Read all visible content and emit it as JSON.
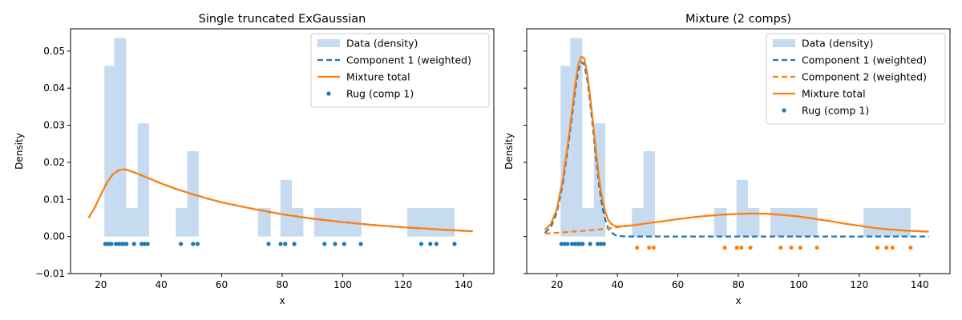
{
  "chart_data": [
    {
      "type": "bar",
      "title": "Single truncated ExGaussian",
      "xlabel": "x",
      "ylabel": "Density",
      "xlim": [
        10,
        150
      ],
      "ylim": [
        -0.01,
        0.056
      ],
      "xticks": [
        20,
        40,
        60,
        80,
        100,
        120,
        140
      ],
      "yticks": [
        -0.01,
        0.0,
        0.01,
        0.02,
        0.03,
        0.04,
        0.05
      ],
      "ytick_labels": [
        "−0.01",
        "0.00",
        "0.01",
        "0.02",
        "0.03",
        "0.04",
        "0.05"
      ],
      "legend_position": "top-right",
      "legend": [
        "Data (density)",
        "Component 1 (weighted)",
        "Mixture total",
        "Rug (comp 1)"
      ],
      "histogram": {
        "color": "#c6dbef",
        "bins": [
          [
            21.2,
            24.4,
            0.046
          ],
          [
            24.4,
            28.4,
            0.0535
          ],
          [
            28.4,
            32.2,
            0.0077
          ],
          [
            32.2,
            36.0,
            0.0305
          ],
          [
            44.8,
            48.6,
            0.0077
          ],
          [
            48.6,
            52.4,
            0.023
          ],
          [
            72.0,
            76.2,
            0.0077
          ],
          [
            79.4,
            83.2,
            0.0153
          ],
          [
            83.2,
            87.0,
            0.0077
          ],
          [
            90.6,
            106.2,
            0.0077
          ],
          [
            121.4,
            137.0,
            0.0077
          ]
        ]
      },
      "curves": [
        {
          "name": "Component 1 (weighted)",
          "color": "#1f77b4",
          "style": "dashed",
          "x": [
            16,
            18,
            20,
            22,
            24,
            26,
            28,
            30,
            32,
            35,
            40,
            45,
            50,
            55,
            60,
            70,
            80,
            90,
            100,
            110,
            120,
            130,
            143
          ],
          "y": [
            0.005,
            0.0078,
            0.0112,
            0.0145,
            0.0168,
            0.0179,
            0.0181,
            0.0176,
            0.017,
            0.016,
            0.0143,
            0.0128,
            0.0115,
            0.0103,
            0.0092,
            0.0075,
            0.006,
            0.0048,
            0.0039,
            0.0031,
            0.0025,
            0.002,
            0.0014
          ]
        },
        {
          "name": "Mixture total",
          "color": "#ff7f0e",
          "style": "solid",
          "x": [
            16,
            18,
            20,
            22,
            24,
            26,
            28,
            30,
            32,
            35,
            40,
            45,
            50,
            55,
            60,
            70,
            80,
            90,
            100,
            110,
            120,
            130,
            143
          ],
          "y": [
            0.005,
            0.0078,
            0.0112,
            0.0145,
            0.0168,
            0.0179,
            0.0181,
            0.0176,
            0.017,
            0.016,
            0.0143,
            0.0128,
            0.0115,
            0.0103,
            0.0092,
            0.0075,
            0.006,
            0.0048,
            0.0039,
            0.0031,
            0.0025,
            0.002,
            0.0014
          ]
        }
      ],
      "rugs": [
        {
          "name": "Rug (comp 1)",
          "color": "#1f77b4",
          "y": -0.002,
          "x": [
            21.5,
            22.5,
            23.5,
            25,
            26,
            27,
            27.5,
            28.5,
            31,
            33.5,
            34.5,
            35.5,
            46.5,
            50.5,
            52,
            75.5,
            79.5,
            81,
            84,
            94,
            97.5,
            100.5,
            106,
            126,
            129,
            131,
            137
          ]
        }
      ]
    },
    {
      "type": "bar",
      "title": "Mixture (2 comps)",
      "xlabel": "x",
      "ylabel": "Density",
      "xlim": [
        10,
        150
      ],
      "ylim": [
        -0.01,
        0.056
      ],
      "xticks": [
        20,
        40,
        60,
        80,
        100,
        120,
        140
      ],
      "yticks": [
        -0.01,
        0.0,
        0.01,
        0.02,
        0.03,
        0.04,
        0.05
      ],
      "ytick_labels": [
        "",
        "",
        "",
        "",
        "",
        "",
        ""
      ],
      "legend_position": "top-right",
      "legend": [
        "Data (density)",
        "Component 1 (weighted)",
        "Component 2 (weighted)",
        "Mixture total",
        "Rug (comp 1)"
      ],
      "histogram": {
        "color": "#c6dbef",
        "bins": [
          [
            21.2,
            24.4,
            0.046
          ],
          [
            24.4,
            28.4,
            0.0535
          ],
          [
            28.4,
            32.2,
            0.0077
          ],
          [
            32.2,
            36.0,
            0.0305
          ],
          [
            44.8,
            48.6,
            0.0077
          ],
          [
            48.6,
            52.4,
            0.023
          ],
          [
            72.0,
            76.2,
            0.0077
          ],
          [
            79.4,
            83.2,
            0.0153
          ],
          [
            83.2,
            87.0,
            0.0077
          ],
          [
            90.6,
            106.2,
            0.0077
          ],
          [
            121.4,
            137.0,
            0.0077
          ]
        ]
      },
      "curves": [
        {
          "name": "Component 1 (weighted)",
          "color": "#1f77b4",
          "style": "dashed",
          "x": [
            16,
            18,
            20,
            22,
            24,
            26,
            27,
            28,
            29,
            30,
            31,
            32,
            33,
            34,
            35,
            36,
            37,
            38,
            39,
            40,
            42,
            45,
            50,
            60,
            80,
            100,
            143
          ],
          "y": [
            0.001,
            0.0025,
            0.0065,
            0.0145,
            0.026,
            0.039,
            0.0445,
            0.047,
            0.0465,
            0.0425,
            0.036,
            0.0285,
            0.0205,
            0.0135,
            0.008,
            0.0045,
            0.0022,
            0.0011,
            0.0005,
            0.0002,
            5e-05,
            0.0,
            0.0,
            0.0,
            0.0,
            0.0,
            0.0
          ]
        },
        {
          "name": "Component 2 (weighted)",
          "color": "#ff7f0e",
          "style": "dashed",
          "x": [
            16,
            20,
            25,
            30,
            35,
            40,
            45,
            50,
            55,
            60,
            65,
            70,
            75,
            80,
            85,
            90,
            95,
            100,
            105,
            110,
            115,
            120,
            125,
            130,
            135,
            143
          ],
          "y": [
            0.0008,
            0.001,
            0.0013,
            0.0016,
            0.002,
            0.0025,
            0.003,
            0.0036,
            0.0041,
            0.0047,
            0.0052,
            0.0056,
            0.0059,
            0.0061,
            0.0062,
            0.0061,
            0.0058,
            0.0054,
            0.0048,
            0.0042,
            0.0035,
            0.0029,
            0.0023,
            0.0019,
            0.0016,
            0.0013
          ]
        },
        {
          "name": "Mixture total",
          "color": "#ff7f0e",
          "style": "solid",
          "x": [
            16,
            18,
            20,
            22,
            24,
            26,
            27,
            28,
            29,
            30,
            31,
            32,
            33,
            34,
            35,
            36,
            37,
            38,
            39,
            40,
            42,
            45,
            50,
            55,
            60,
            65,
            70,
            75,
            80,
            85,
            90,
            95,
            100,
            105,
            110,
            115,
            120,
            125,
            130,
            135,
            143
          ],
          "y": [
            0.0018,
            0.0034,
            0.0075,
            0.0157,
            0.0274,
            0.0406,
            0.0462,
            0.0485,
            0.0481,
            0.0441,
            0.0377,
            0.0303,
            0.0224,
            0.0155,
            0.01,
            0.0066,
            0.0044,
            0.0034,
            0.0029,
            0.0027,
            0.0028,
            0.003,
            0.0036,
            0.0041,
            0.0047,
            0.0052,
            0.0056,
            0.0059,
            0.0061,
            0.0062,
            0.0061,
            0.0058,
            0.0054,
            0.0048,
            0.0042,
            0.0035,
            0.0029,
            0.0023,
            0.0019,
            0.0016,
            0.0013
          ]
        }
      ],
      "rugs": [
        {
          "name": "Rug (comp 1)",
          "color": "#1f77b4",
          "y": -0.002,
          "x": [
            21.5,
            22.5,
            23.5,
            25,
            26,
            27,
            27.5,
            28.5,
            31,
            33.5,
            34.5,
            35.5
          ]
        },
        {
          "name": "",
          "color": "#ff7f0e",
          "y": -0.003,
          "x": [
            46.5,
            50.5,
            52,
            75.5,
            79.5,
            81,
            84,
            94,
            97.5,
            100.5,
            106,
            126,
            129,
            131,
            137
          ]
        }
      ]
    }
  ]
}
